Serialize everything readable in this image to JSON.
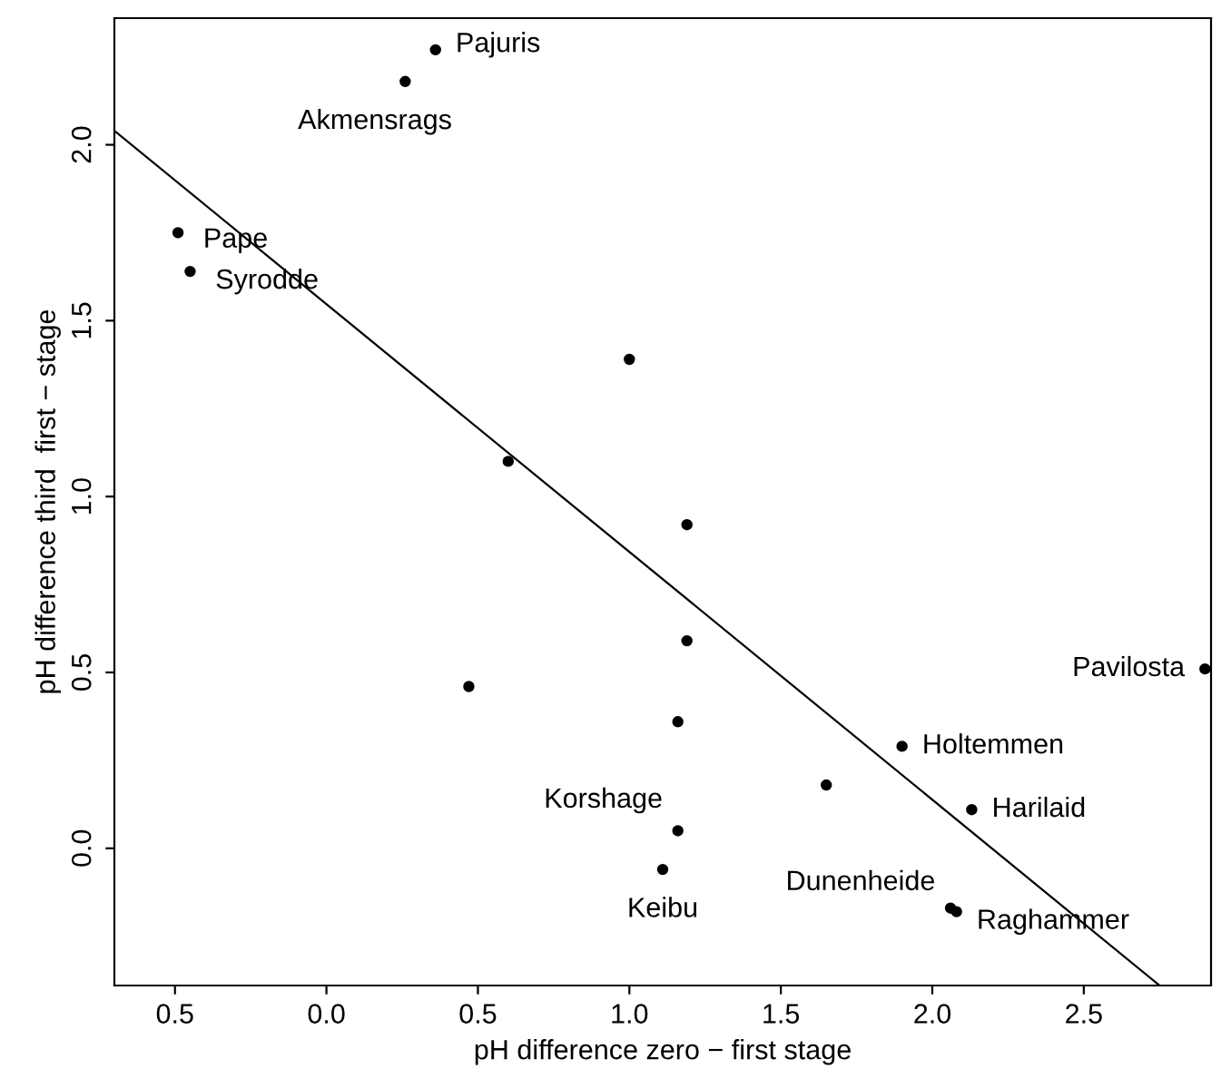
{
  "chart_data": {
    "type": "scatter",
    "xlabel": "pH difference zero − first stage",
    "ylabel": "pH difference third  first − stage",
    "xlim": [
      -0.7,
      2.92
    ],
    "ylim": [
      -0.39,
      2.36
    ],
    "xticks": [
      {
        "value": -0.5,
        "label": "0.5"
      },
      {
        "value": 0.0,
        "label": "0.0"
      },
      {
        "value": 0.5,
        "label": "0.5"
      },
      {
        "value": 1.0,
        "label": "1.0"
      },
      {
        "value": 1.5,
        "label": "1.5"
      },
      {
        "value": 2.0,
        "label": "2.0"
      },
      {
        "value": 2.5,
        "label": "2.5"
      }
    ],
    "yticks": [
      {
        "value": 0.0,
        "label": "0.0"
      },
      {
        "value": 0.5,
        "label": "0.5"
      },
      {
        "value": 1.0,
        "label": "1.0"
      },
      {
        "value": 1.5,
        "label": "1.5"
      },
      {
        "value": 2.0,
        "label": "2.0"
      }
    ],
    "grid": false,
    "legend": false,
    "series": [
      {
        "marker": "circle",
        "color": "#000000",
        "x": [
          0.36,
          0.26,
          -0.49,
          -0.45,
          1.0,
          0.6,
          1.19,
          1.19,
          0.47,
          1.16,
          2.9,
          1.9,
          1.65,
          2.13,
          1.16,
          1.11,
          2.06,
          2.08
        ],
        "values": [
          2.27,
          2.18,
          1.75,
          1.64,
          1.39,
          1.1,
          0.92,
          0.59,
          0.46,
          0.36,
          0.51,
          0.29,
          0.18,
          0.11,
          0.05,
          -0.06,
          -0.17,
          -0.18
        ]
      },
      {
        "type": "line",
        "color": "#000000",
        "x": [
          -0.7,
          2.75
        ],
        "values": [
          2.04,
          -0.39
        ]
      }
    ],
    "annotations": [
      {
        "text": "Pajuris",
        "x": 0.36,
        "y": 2.27
      },
      {
        "text": "Akmensrags",
        "x": 0.26,
        "y": 2.18
      },
      {
        "text": "Pape",
        "x": -0.49,
        "y": 1.75
      },
      {
        "text": "Syrodde",
        "x": -0.45,
        "y": 1.64
      },
      {
        "text": "Pavilosta",
        "x": 2.9,
        "y": 0.51
      },
      {
        "text": "Holtemmen",
        "x": 1.9,
        "y": 0.29
      },
      {
        "text": "Harilaid",
        "x": 2.13,
        "y": 0.11
      },
      {
        "text": "Korshage",
        "x": 1.16,
        "y": 0.05
      },
      {
        "text": "Keibu",
        "x": 1.11,
        "y": -0.06
      },
      {
        "text": "Dunenheide",
        "x": 2.06,
        "y": -0.17
      },
      {
        "text": "Raghammer",
        "x": 2.08,
        "y": -0.18
      }
    ]
  }
}
